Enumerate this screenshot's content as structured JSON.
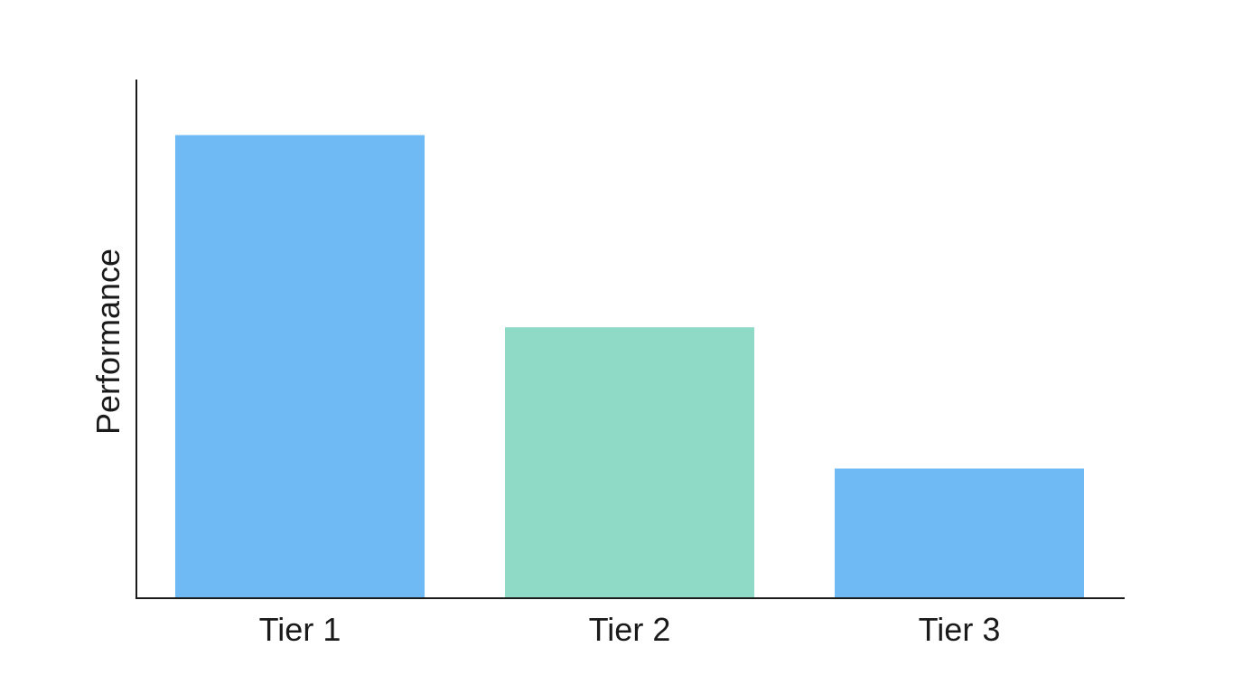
{
  "chart_data": {
    "type": "bar",
    "title": "",
    "xlabel": "",
    "ylabel": "Performance",
    "categories": [
      "Tier 1",
      "Tier 2",
      "Tier 3"
    ],
    "values": [
      100,
      58.5,
      28
    ],
    "ylim": [
      0,
      112
    ],
    "bar_colors": [
      "#6fb9f5",
      "#8fd9c7",
      "#6fb9f5"
    ],
    "grid": false,
    "legend": "none",
    "y_ticks_shown": false
  }
}
